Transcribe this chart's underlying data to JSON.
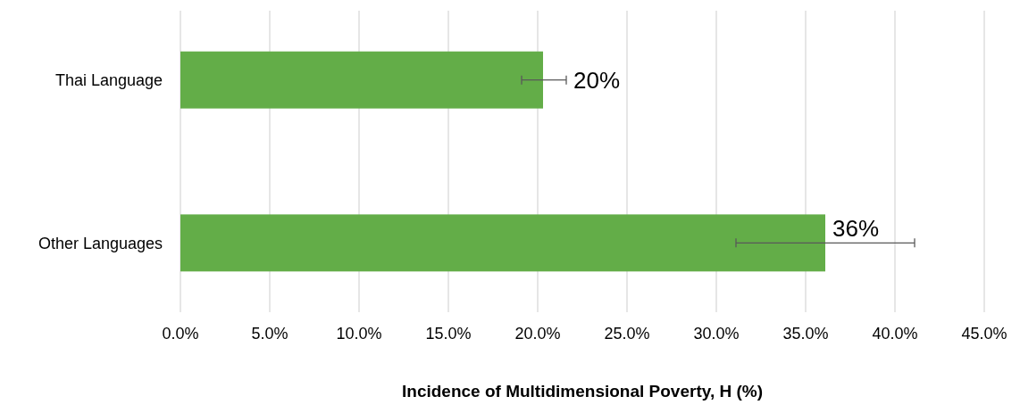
{
  "chart_data": {
    "type": "bar",
    "orientation": "horizontal",
    "xlabel": "Incidence of Multidimensional Poverty, H (%)",
    "categories": [
      "Thai Language",
      "Other Languages"
    ],
    "values": [
      20.3,
      36.1
    ],
    "color": "#63ad48",
    "errors": [
      [
        19.1,
        21.6
      ],
      [
        31.1,
        41.1
      ]
    ],
    "value_labels": [
      "20%",
      "36%"
    ],
    "xlim": [
      0,
      45
    ],
    "xticks": [
      {
        "value": 0,
        "label": "0.0%"
      },
      {
        "value": 5,
        "label": "5.0%"
      },
      {
        "value": 10,
        "label": "10.0%"
      },
      {
        "value": 15,
        "label": "15.0%"
      },
      {
        "value": 20,
        "label": "20.0%"
      },
      {
        "value": 25,
        "label": "25.0%"
      },
      {
        "value": 30,
        "label": "30.0%"
      },
      {
        "value": 35,
        "label": "35.0%"
      },
      {
        "value": 40,
        "label": "40.0%"
      },
      {
        "value": 45,
        "label": "45.0%"
      }
    ],
    "grid": "x"
  }
}
